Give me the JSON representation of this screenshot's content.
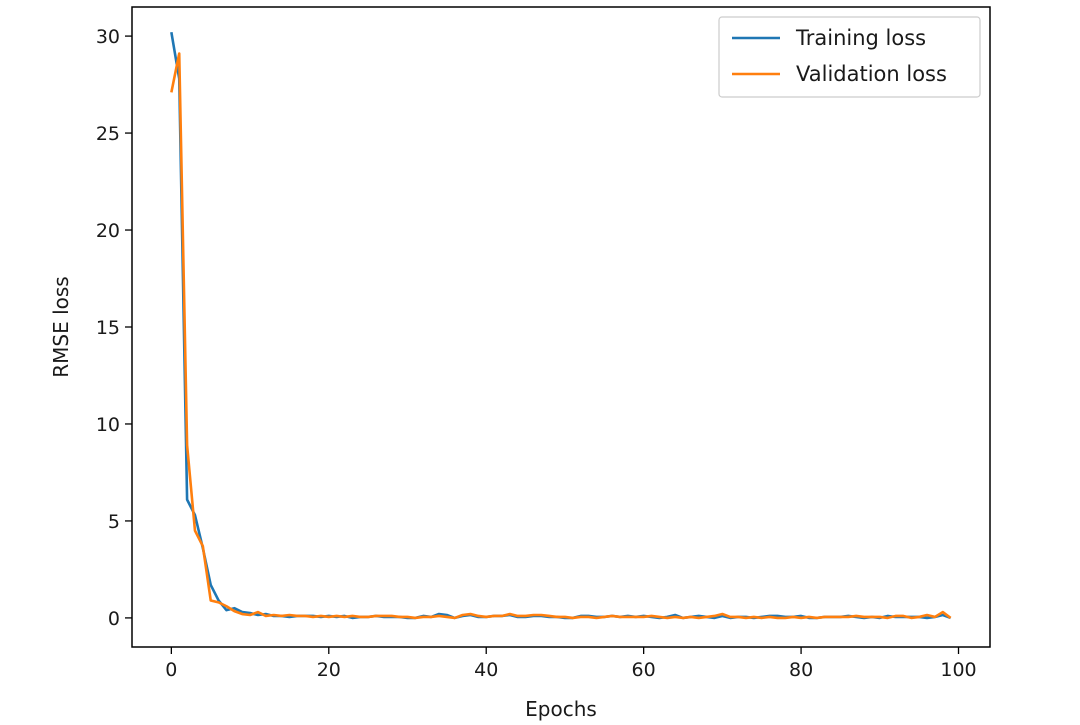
{
  "chart_data": {
    "type": "line",
    "title": "",
    "xlabel": "Epochs",
    "ylabel": "RMSE loss",
    "xlim": [
      -5,
      104
    ],
    "ylim": [
      -1.5,
      31.5
    ],
    "xticks": [
      0,
      20,
      40,
      60,
      80,
      100
    ],
    "yticks": [
      0,
      5,
      10,
      15,
      20,
      25,
      30
    ],
    "grid": false,
    "legend_position": "upper-right",
    "series": [
      {
        "name": "Training loss",
        "color": "#1f77b4",
        "x": [
          0,
          1,
          2,
          3,
          4,
          5,
          6,
          7,
          8,
          9,
          10,
          11,
          12,
          13,
          14,
          15,
          16,
          17,
          18,
          19,
          20,
          21,
          22,
          23,
          24,
          25,
          26,
          27,
          28,
          29,
          30,
          31,
          32,
          33,
          34,
          35,
          36,
          37,
          38,
          39,
          40,
          41,
          42,
          43,
          44,
          45,
          46,
          47,
          48,
          49,
          50,
          51,
          52,
          53,
          54,
          55,
          56,
          57,
          58,
          59,
          60,
          61,
          62,
          63,
          64,
          65,
          66,
          67,
          68,
          69,
          70,
          71,
          72,
          73,
          74,
          75,
          76,
          77,
          78,
          79,
          80,
          81,
          82,
          83,
          84,
          85,
          86,
          87,
          88,
          89,
          90,
          91,
          92,
          93,
          94,
          95,
          96,
          97,
          98,
          99
        ],
        "y": [
          30.2,
          27.8,
          6.1,
          5.3,
          3.6,
          1.7,
          0.9,
          0.4,
          0.5,
          0.3,
          0.25,
          0.15,
          0.2,
          0.1,
          0.1,
          0.05,
          0.1,
          0.1,
          0.1,
          0.05,
          0.1,
          0.05,
          0.1,
          0.0,
          0.05,
          0.05,
          0.1,
          0.05,
          0.05,
          0.05,
          0.0,
          0.0,
          0.1,
          0.05,
          0.2,
          0.15,
          0.0,
          0.1,
          0.15,
          0.05,
          0.05,
          0.1,
          0.1,
          0.15,
          0.05,
          0.05,
          0.1,
          0.1,
          0.05,
          0.05,
          0.0,
          0.0,
          0.1,
          0.1,
          0.05,
          0.05,
          0.1,
          0.05,
          0.1,
          0.05,
          0.1,
          0.05,
          0.0,
          0.05,
          0.15,
          0.0,
          0.05,
          0.1,
          0.05,
          0.0,
          0.1,
          0.0,
          0.05,
          0.05,
          0.0,
          0.05,
          0.1,
          0.1,
          0.05,
          0.05,
          0.1,
          0.0,
          0.0,
          0.05,
          0.05,
          0.05,
          0.1,
          0.05,
          0.0,
          0.05,
          0.0,
          0.1,
          0.05,
          0.05,
          0.05,
          0.05,
          0.0,
          0.05,
          0.15,
          0.0
        ]
      },
      {
        "name": "Validation loss",
        "color": "#ff7f0e",
        "x": [
          0,
          1,
          2,
          3,
          4,
          5,
          6,
          7,
          8,
          9,
          10,
          11,
          12,
          13,
          14,
          15,
          16,
          17,
          18,
          19,
          20,
          21,
          22,
          23,
          24,
          25,
          26,
          27,
          28,
          29,
          30,
          31,
          32,
          33,
          34,
          35,
          36,
          37,
          38,
          39,
          40,
          41,
          42,
          43,
          44,
          45,
          46,
          47,
          48,
          49,
          50,
          51,
          52,
          53,
          54,
          55,
          56,
          57,
          58,
          59,
          60,
          61,
          62,
          63,
          64,
          65,
          66,
          67,
          68,
          69,
          70,
          71,
          72,
          73,
          74,
          75,
          76,
          77,
          78,
          79,
          80,
          81,
          82,
          83,
          84,
          85,
          86,
          87,
          88,
          89,
          90,
          91,
          92,
          93,
          94,
          95,
          96,
          97,
          98,
          99
        ],
        "y": [
          27.1,
          29.1,
          8.9,
          4.5,
          3.7,
          0.9,
          0.8,
          0.6,
          0.35,
          0.2,
          0.15,
          0.3,
          0.1,
          0.15,
          0.1,
          0.15,
          0.1,
          0.1,
          0.05,
          0.1,
          0.05,
          0.1,
          0.05,
          0.1,
          0.05,
          0.05,
          0.1,
          0.1,
          0.1,
          0.05,
          0.05,
          0.0,
          0.05,
          0.05,
          0.1,
          0.05,
          0.0,
          0.15,
          0.2,
          0.1,
          0.05,
          0.1,
          0.1,
          0.2,
          0.1,
          0.1,
          0.15,
          0.15,
          0.1,
          0.05,
          0.05,
          0.0,
          0.05,
          0.05,
          0.0,
          0.05,
          0.1,
          0.05,
          0.05,
          0.05,
          0.05,
          0.1,
          0.05,
          0.0,
          0.05,
          0.0,
          0.05,
          0.0,
          0.05,
          0.1,
          0.2,
          0.05,
          0.05,
          0.0,
          0.05,
          0.0,
          0.05,
          0.0,
          0.0,
          0.05,
          0.0,
          0.05,
          0.0,
          0.05,
          0.05,
          0.05,
          0.05,
          0.1,
          0.05,
          0.05,
          0.05,
          0.0,
          0.1,
          0.1,
          0.0,
          0.05,
          0.15,
          0.05,
          0.3,
          0.0
        ]
      }
    ]
  }
}
